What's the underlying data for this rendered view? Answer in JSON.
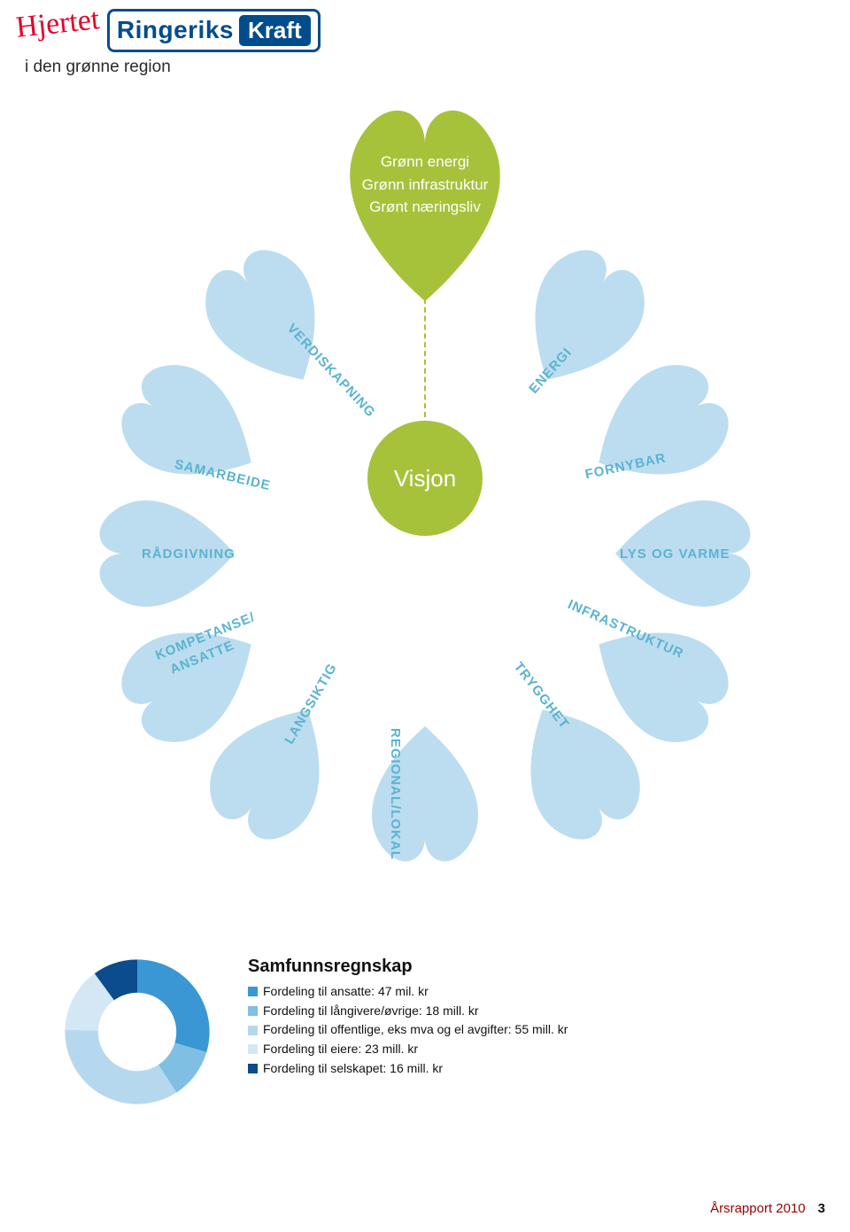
{
  "colors": {
    "petal": "#bcddef",
    "top_petal": "#a6c23a",
    "center": "#a6c23a",
    "stem": "#a6c23a",
    "label": "#5ab3d1",
    "logo_border": "#0a4c8c",
    "logo_text": "#004c8c",
    "script": "#e4002b"
  },
  "header": {
    "script_word": "Hjertet",
    "logo_word": "Ringeriks",
    "logo_bolt": "Kraft",
    "tagline": "i den grønne region"
  },
  "diagram": {
    "center_label": "Visjon",
    "top_lines": [
      "Grønn energi",
      "Grønn infrastruktur",
      "Grønt næringsliv"
    ],
    "petal_labels": {
      "l1": "ENERGI",
      "l2": "FORNYBAR",
      "l3": "LYS OG VARME",
      "l4": "INFRASTRUKTUR",
      "l5": "TRYGGHET",
      "l6": "REGIONAL/LOKAL",
      "l7": "LANGSIKTIG",
      "l8": "KOMPETANSE/",
      "l8b": "ANSATTE",
      "l9": "RÅDGIVNING",
      "l10": "SAMARBEIDE",
      "l11": "VERDISKAPNING"
    }
  },
  "donut": {
    "title": "Samfunnsregnskap",
    "type": "pie",
    "inner_radius_ratio": 0.55,
    "background": "#ffffff",
    "start_angle_deg": -90,
    "items": [
      {
        "label": "Fordeling til ansatte: 47 mil. kr",
        "value": 47,
        "color": "#3a97d3"
      },
      {
        "label": "Fordeling til långivere/øvrige: 18 mill. kr",
        "value": 18,
        "color": "#7fbfe4"
      },
      {
        "label": "Fordeling til offentlige, eks mva og el avgifter: 55 mill. kr",
        "value": 55,
        "color": "#b6d8ef"
      },
      {
        "label": "Fordeling til eiere: 23 mill. kr",
        "value": 23,
        "color": "#d4e7f5"
      },
      {
        "label": "Fordeling til selskapet: 16 mill. kr",
        "value": 16,
        "color": "#0a4c8c"
      }
    ]
  },
  "footer": {
    "text": "Årsrapport 2010",
    "page": "3"
  }
}
